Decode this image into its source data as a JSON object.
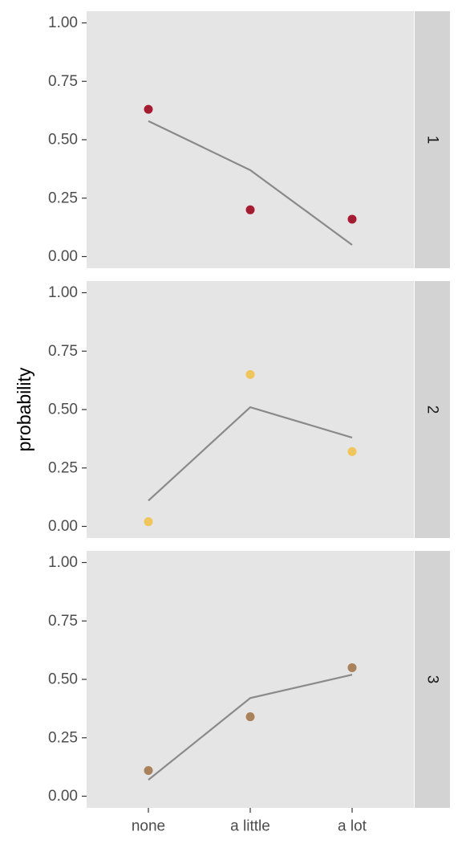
{
  "chart_data": {
    "type": "line",
    "ylabel": "probability",
    "xlabel": "",
    "categories": [
      "none",
      "a little",
      "a lot"
    ],
    "ylim": [
      0,
      1
    ],
    "yticks": [
      "0.00",
      "0.25",
      "0.50",
      "0.75",
      "1.00"
    ],
    "ytick_values": [
      0,
      0.25,
      0.5,
      0.75,
      1.0
    ],
    "grid": false,
    "line_color": "#8a8a8a",
    "panels": [
      {
        "strip": "1",
        "color": "#a51c30",
        "points": [
          0.63,
          0.2,
          0.16
        ],
        "line": [
          0.58,
          0.37,
          0.05
        ]
      },
      {
        "strip": "2",
        "color": "#f0c65a",
        "points": [
          0.02,
          0.65,
          0.32
        ],
        "line": [
          0.11,
          0.51,
          0.38
        ]
      },
      {
        "strip": "3",
        "color": "#a9825a",
        "points": [
          0.11,
          0.34,
          0.55
        ],
        "line": [
          0.07,
          0.42,
          0.52
        ]
      }
    ]
  }
}
